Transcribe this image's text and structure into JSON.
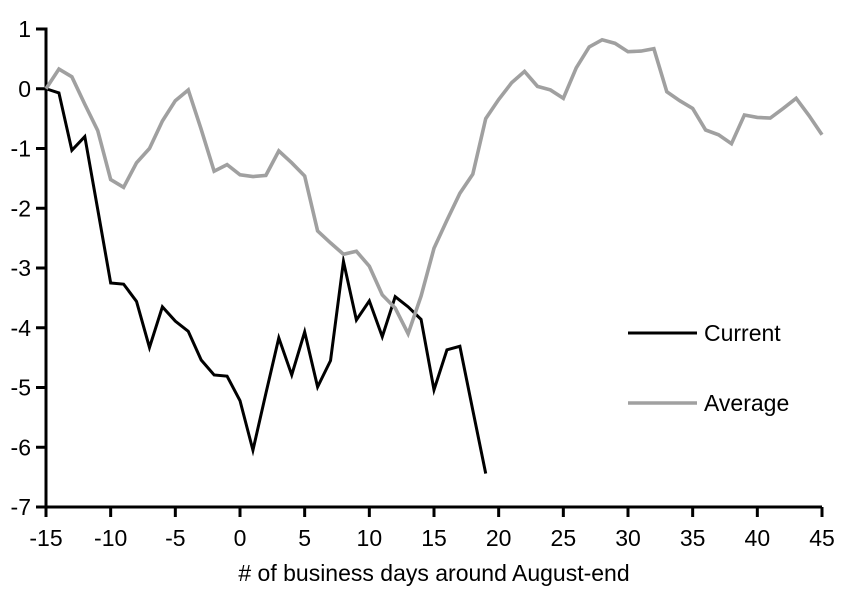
{
  "chart_data": {
    "type": "line",
    "title": "",
    "xlabel": "# of business days around August-end",
    "ylabel": "",
    "xlim": [
      -15,
      45
    ],
    "ylim": [
      -7,
      1
    ],
    "x_ticks": [
      -15,
      -10,
      -5,
      0,
      5,
      10,
      15,
      20,
      25,
      30,
      35,
      40,
      45
    ],
    "y_ticks": [
      1,
      0,
      -1,
      -2,
      -3,
      -4,
      -5,
      -6,
      -7
    ],
    "grid": false,
    "legend_position": "right-middle",
    "axis_color": "#000000",
    "series": [
      {
        "name": "Current",
        "color": "#000000",
        "x_start": -15,
        "x_step": 1,
        "values": [
          0.0,
          -0.07,
          -1.03,
          -0.8,
          -2.02,
          -3.25,
          -3.27,
          -3.56,
          -4.33,
          -3.65,
          -3.89,
          -4.06,
          -4.54,
          -4.79,
          -4.81,
          -5.22,
          -6.05,
          -5.1,
          -4.17,
          -4.79,
          -4.07,
          -4.99,
          -4.55,
          -2.89,
          -3.87,
          -3.55,
          -4.15,
          -3.48,
          -3.65,
          -3.86,
          -5.04,
          -4.37,
          -4.31,
          -5.38,
          -6.44
        ]
      },
      {
        "name": "Average",
        "color": "#a0a0a0",
        "x_start": -15,
        "x_step": 1,
        "values": [
          0.0,
          0.33,
          0.2,
          -0.26,
          -0.7,
          -1.52,
          -1.65,
          -1.24,
          -1.0,
          -0.54,
          -0.2,
          -0.02,
          -0.68,
          -1.38,
          -1.27,
          -1.44,
          -1.47,
          -1.45,
          -1.04,
          -1.24,
          -1.46,
          -2.38,
          -2.58,
          -2.77,
          -2.72,
          -2.97,
          -3.45,
          -3.67,
          -4.1,
          -3.47,
          -2.67,
          -2.2,
          -1.75,
          -1.43,
          -0.5,
          -0.18,
          0.1,
          0.29,
          0.04,
          -0.02,
          -0.16,
          0.35,
          0.7,
          0.82,
          0.76,
          0.62,
          0.63,
          0.67,
          -0.05,
          -0.2,
          -0.33,
          -0.69,
          -0.77,
          -0.92,
          -0.44,
          -0.48,
          -0.49,
          -0.33,
          -0.16,
          -0.45,
          -0.77
        ]
      }
    ]
  }
}
